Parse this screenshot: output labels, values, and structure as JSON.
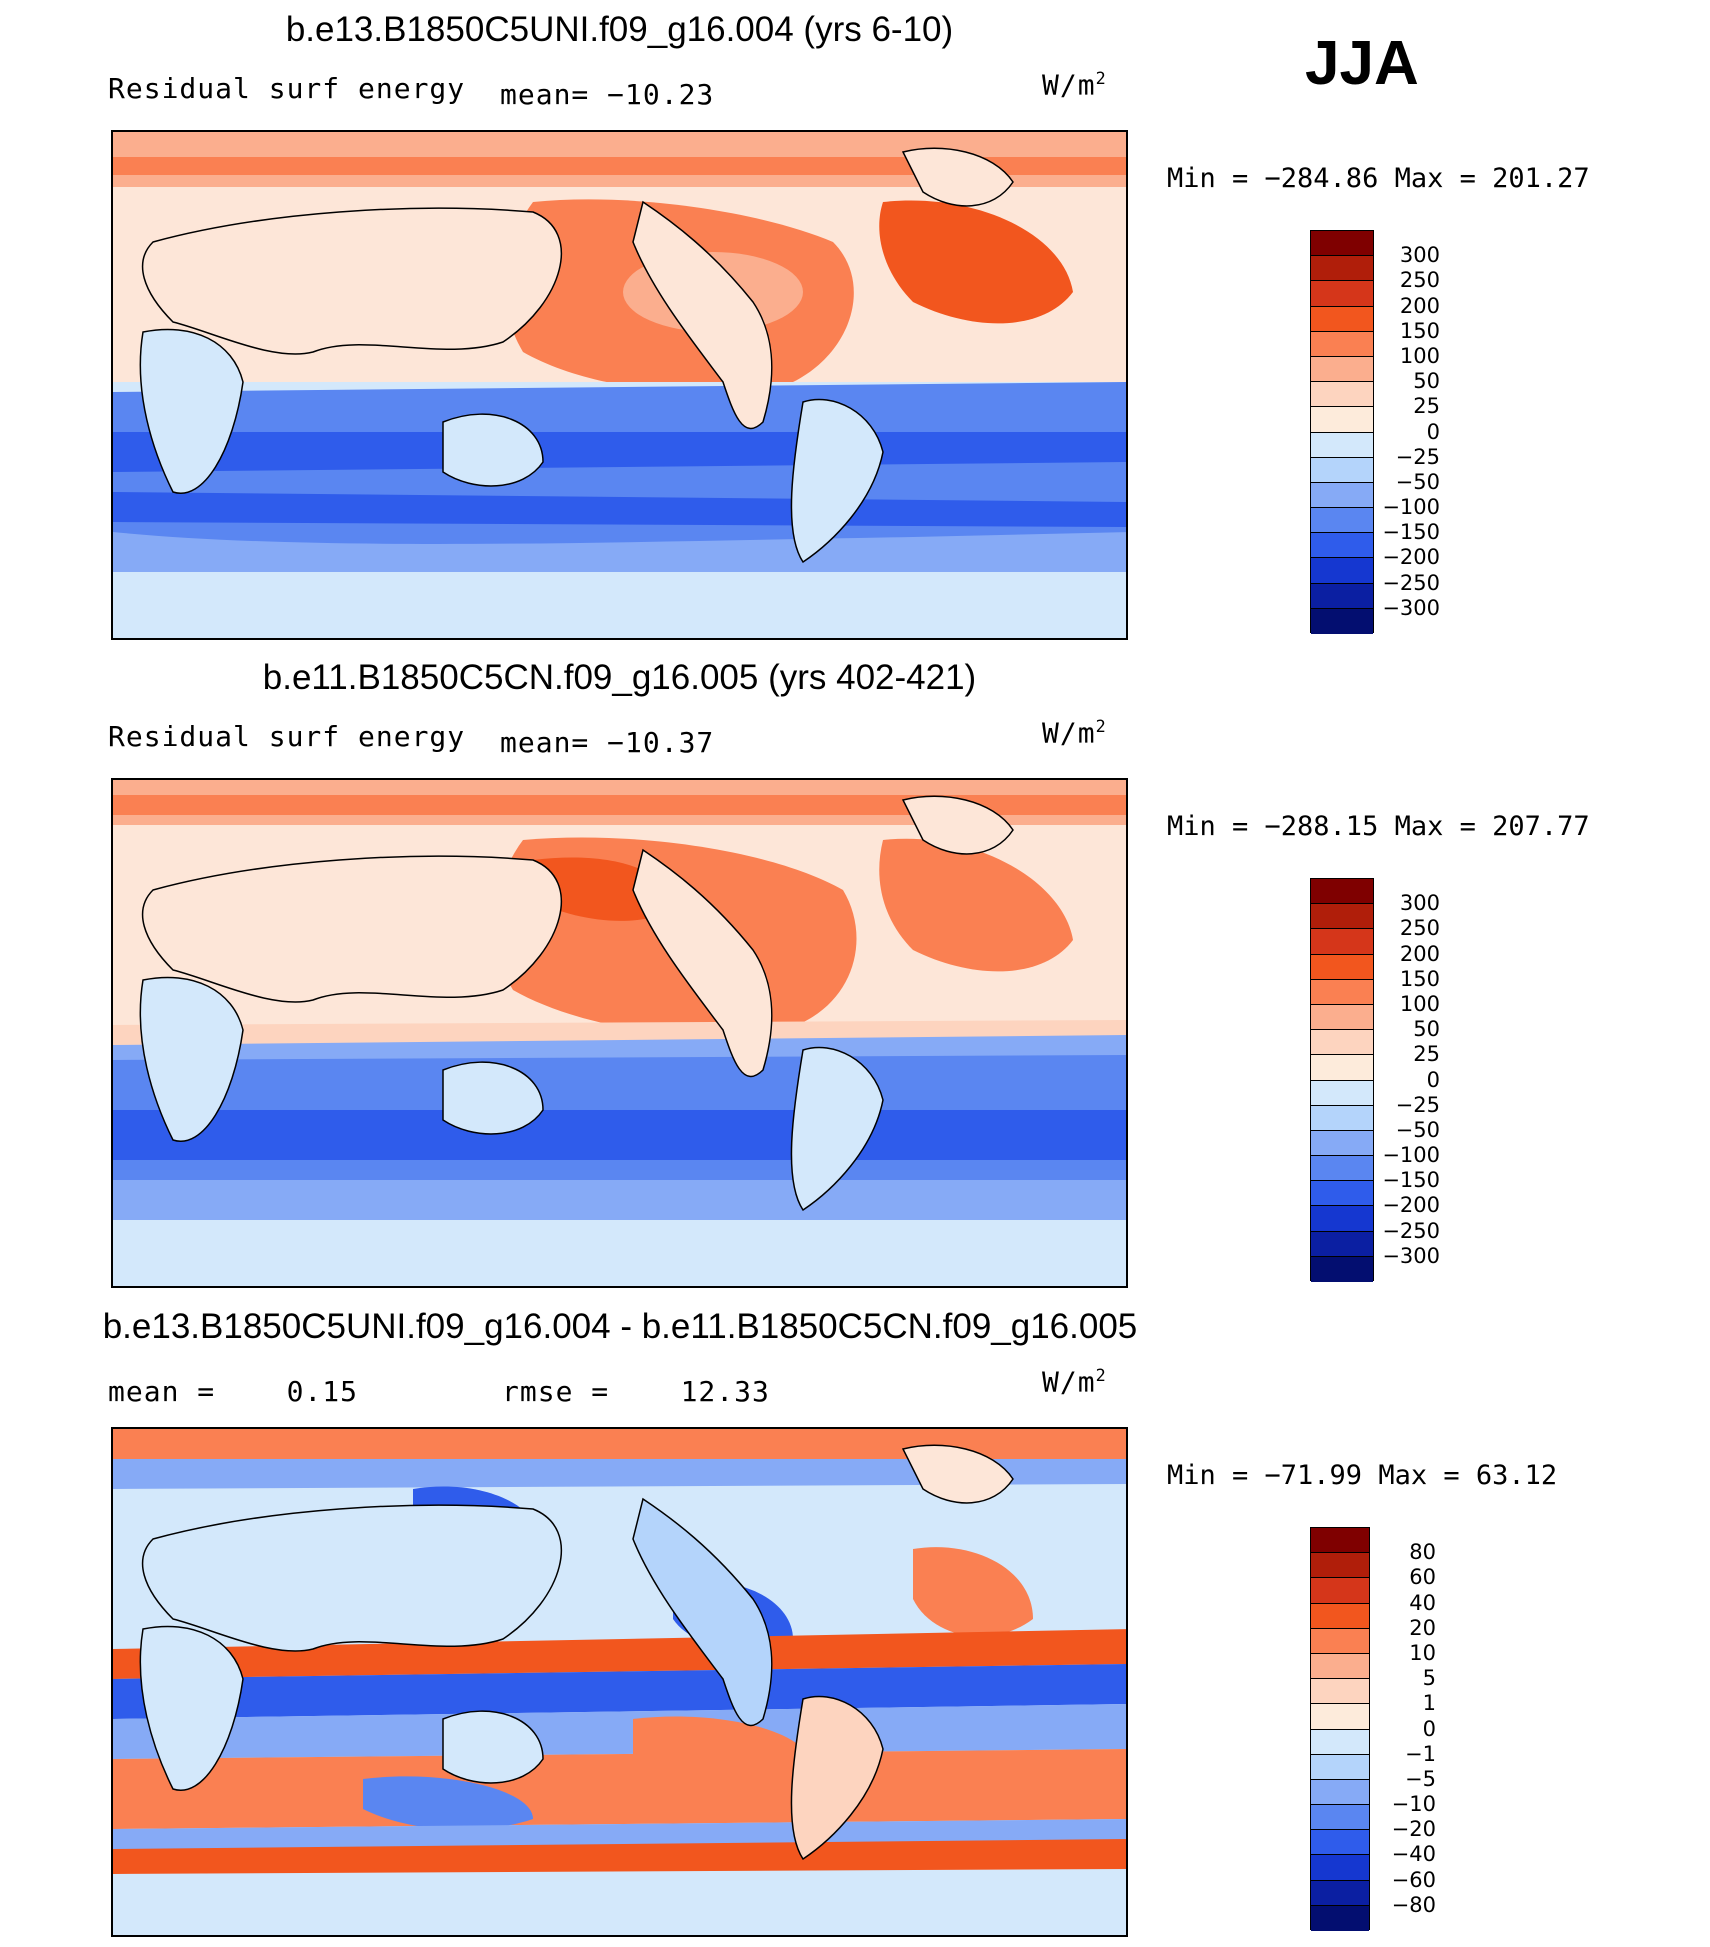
{
  "season": "JJA",
  "chart_data": [
    {
      "type": "heatmap",
      "title": "b.e13.B1850C5UNI.f09_g16.004 (yrs 6-10)",
      "variable": "Residual surf energy",
      "mean_label": "mean= −10.23",
      "units_base": "W/m",
      "units_exp": "2",
      "minmax": "Min = −284.86 Max = 201.27",
      "min": -284.86,
      "max": 201.27,
      "mean": -10.23,
      "levels": [
        "300",
        "250",
        "200",
        "150",
        "100",
        "50",
        "25",
        "0",
        "−25",
        "−50",
        "−100",
        "−150",
        "−200",
        "−250",
        "−300"
      ],
      "colors": [
        "#7f0000",
        "#b01e0a",
        "#d5361a",
        "#f2561e",
        "#fa8052",
        "#fbae8e",
        "#fdd4bf",
        "#fdebdb",
        "#d3e8fb",
        "#b4d4fb",
        "#86aaf6",
        "#5a86f1",
        "#2f5ceb",
        "#1537d0",
        "#0b1fa2",
        "#030e70"
      ]
    },
    {
      "type": "heatmap",
      "title": "b.e11.B1850C5CN.f09_g16.005 (yrs 402-421)",
      "variable": "Residual surf energy",
      "mean_label": "mean= −10.37",
      "units_base": "W/m",
      "units_exp": "2",
      "minmax": "Min = −288.15 Max = 207.77",
      "min": -288.15,
      "max": 207.77,
      "mean": -10.37,
      "levels": [
        "300",
        "250",
        "200",
        "150",
        "100",
        "50",
        "25",
        "0",
        "−25",
        "−50",
        "−100",
        "−150",
        "−200",
        "−250",
        "−300"
      ],
      "colors": [
        "#7f0000",
        "#b01e0a",
        "#d5361a",
        "#f2561e",
        "#fa8052",
        "#fbae8e",
        "#fdd4bf",
        "#fdebdb",
        "#d3e8fb",
        "#b4d4fb",
        "#86aaf6",
        "#5a86f1",
        "#2f5ceb",
        "#1537d0",
        "#0b1fa2",
        "#030e70"
      ]
    },
    {
      "type": "heatmap",
      "title": "b.e13.B1850C5UNI.f09_g16.004 - b.e11.B1850C5CN.f09_g16.005",
      "mean_label": "mean =    0.15",
      "rmse_label": "rmse =    12.33",
      "units_base": "W/m",
      "units_exp": "2",
      "minmax": "Min = −71.99 Max =  63.12",
      "min": -71.99,
      "max": 63.12,
      "mean": 0.15,
      "rmse": 12.33,
      "levels": [
        "80",
        "60",
        "40",
        "20",
        "10",
        "5",
        "1",
        "0",
        "−1",
        "−5",
        "−10",
        "−20",
        "−40",
        "−60",
        "−80"
      ],
      "colors": [
        "#7f0000",
        "#b01e0a",
        "#d5361a",
        "#f2561e",
        "#fa8052",
        "#fbae8e",
        "#fdd4bf",
        "#fdebdb",
        "#d3e8fb",
        "#b4d4fb",
        "#86aaf6",
        "#5a86f1",
        "#2f5ceb",
        "#1537d0",
        "#0b1fa2",
        "#030e70"
      ]
    }
  ]
}
